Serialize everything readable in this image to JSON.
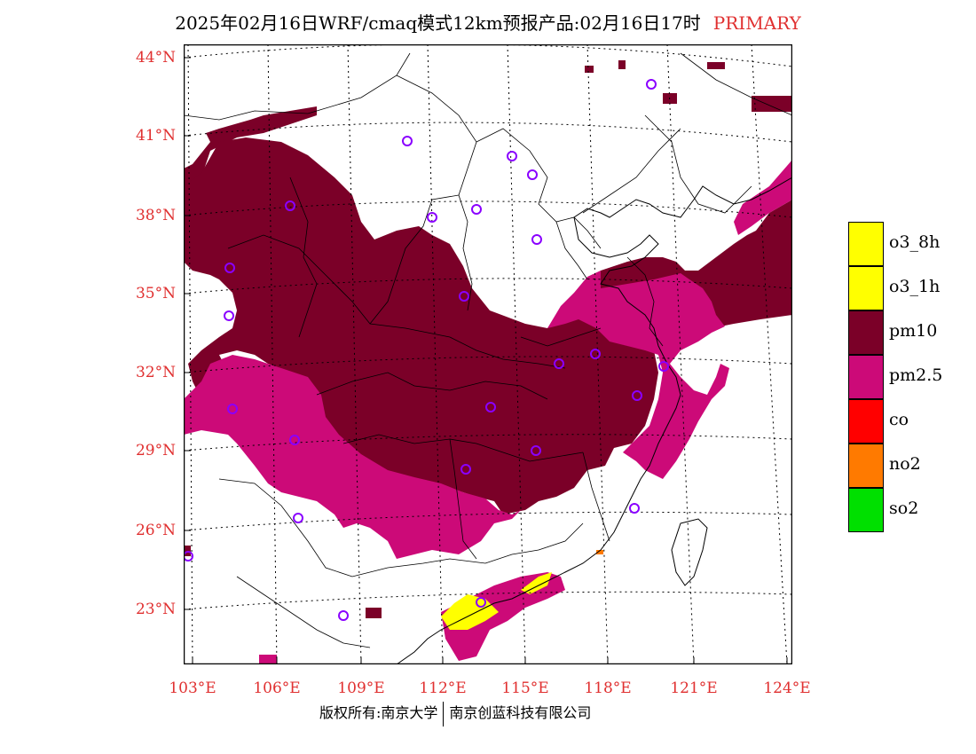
{
  "title": {
    "main": "2025年02月16日WRF/cmaq模式12km预报产品:02月16日17时",
    "primary": "PRIMARY"
  },
  "map": {
    "lat_labels": [
      "44°N",
      "41°N",
      "38°N",
      "35°N",
      "32°N",
      "29°N",
      "26°N",
      "23°N"
    ],
    "lon_labels": [
      "103°E",
      "106°E",
      "109°E",
      "112°E",
      "115°E",
      "118°E",
      "121°E",
      "124°E"
    ],
    "colors": {
      "pm10": "#7b0028",
      "pm25": "#cc0a78",
      "o3": "#ffff00",
      "no2": "#ff7a00",
      "station": "#8a00ff",
      "axis_label": "#e03030"
    }
  },
  "legend": [
    {
      "label": "o3_8h",
      "color": "#ffff00"
    },
    {
      "label": "o3_1h",
      "color": "#ffff00"
    },
    {
      "label": "pm10",
      "color": "#7b0028"
    },
    {
      "label": "pm2.5",
      "color": "#cc0a78"
    },
    {
      "label": "co",
      "color": "#ff0000"
    },
    {
      "label": "no2",
      "color": "#ff7a00"
    },
    {
      "label": "so2",
      "color": "#00e000"
    }
  ],
  "footer": {
    "left": "版权所有:南京大学",
    "right": "南京创蓝科技有限公司"
  }
}
